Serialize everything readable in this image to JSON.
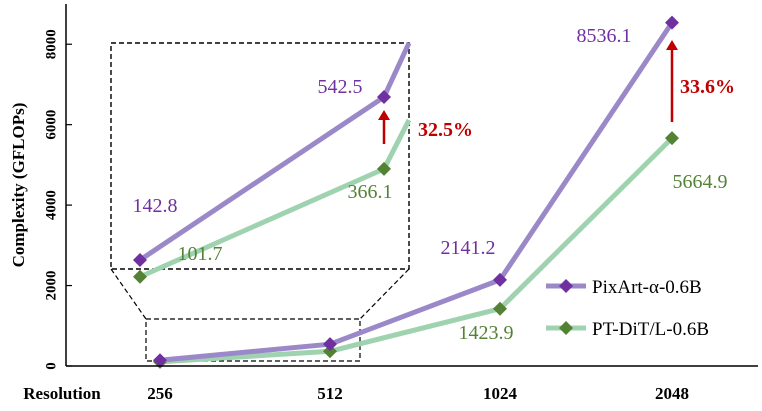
{
  "chart_data": {
    "type": "line",
    "title": "",
    "xlabel": "Resolution",
    "ylabel": "Complexity (GFLOPs)",
    "categories": [
      "256",
      "512",
      "1024",
      "2048"
    ],
    "ylim": [
      0,
      9000
    ],
    "yticks": [
      "0",
      "2000",
      "4000",
      "6000",
      "8000"
    ],
    "grid": false,
    "legend_position": "bottom-right",
    "series": [
      {
        "name": "PixArt-α-0.6B",
        "color": "#9b88c8",
        "marker_color": "#7030a0",
        "label_color": "#7030a0",
        "values": [
          142.8,
          542.5,
          2141.2,
          8536.1
        ],
        "labels": [
          "142.8",
          "542.5",
          "2141.2",
          "8536.1"
        ]
      },
      {
        "name": "PT-DiT/L-0.6B",
        "color": "#9fd3b0",
        "marker_color": "#548235",
        "label_color": "#548235",
        "values": [
          101.7,
          366.1,
          1423.9,
          5664.9
        ],
        "labels": [
          "101.7",
          "366.1",
          "1423.9",
          "5664.9"
        ]
      }
    ],
    "annotations": [
      {
        "text": "32.5%",
        "color": "#c00000",
        "context": "inset 512"
      },
      {
        "text": "33.6%",
        "color": "#c00000",
        "context": "2048"
      }
    ]
  }
}
